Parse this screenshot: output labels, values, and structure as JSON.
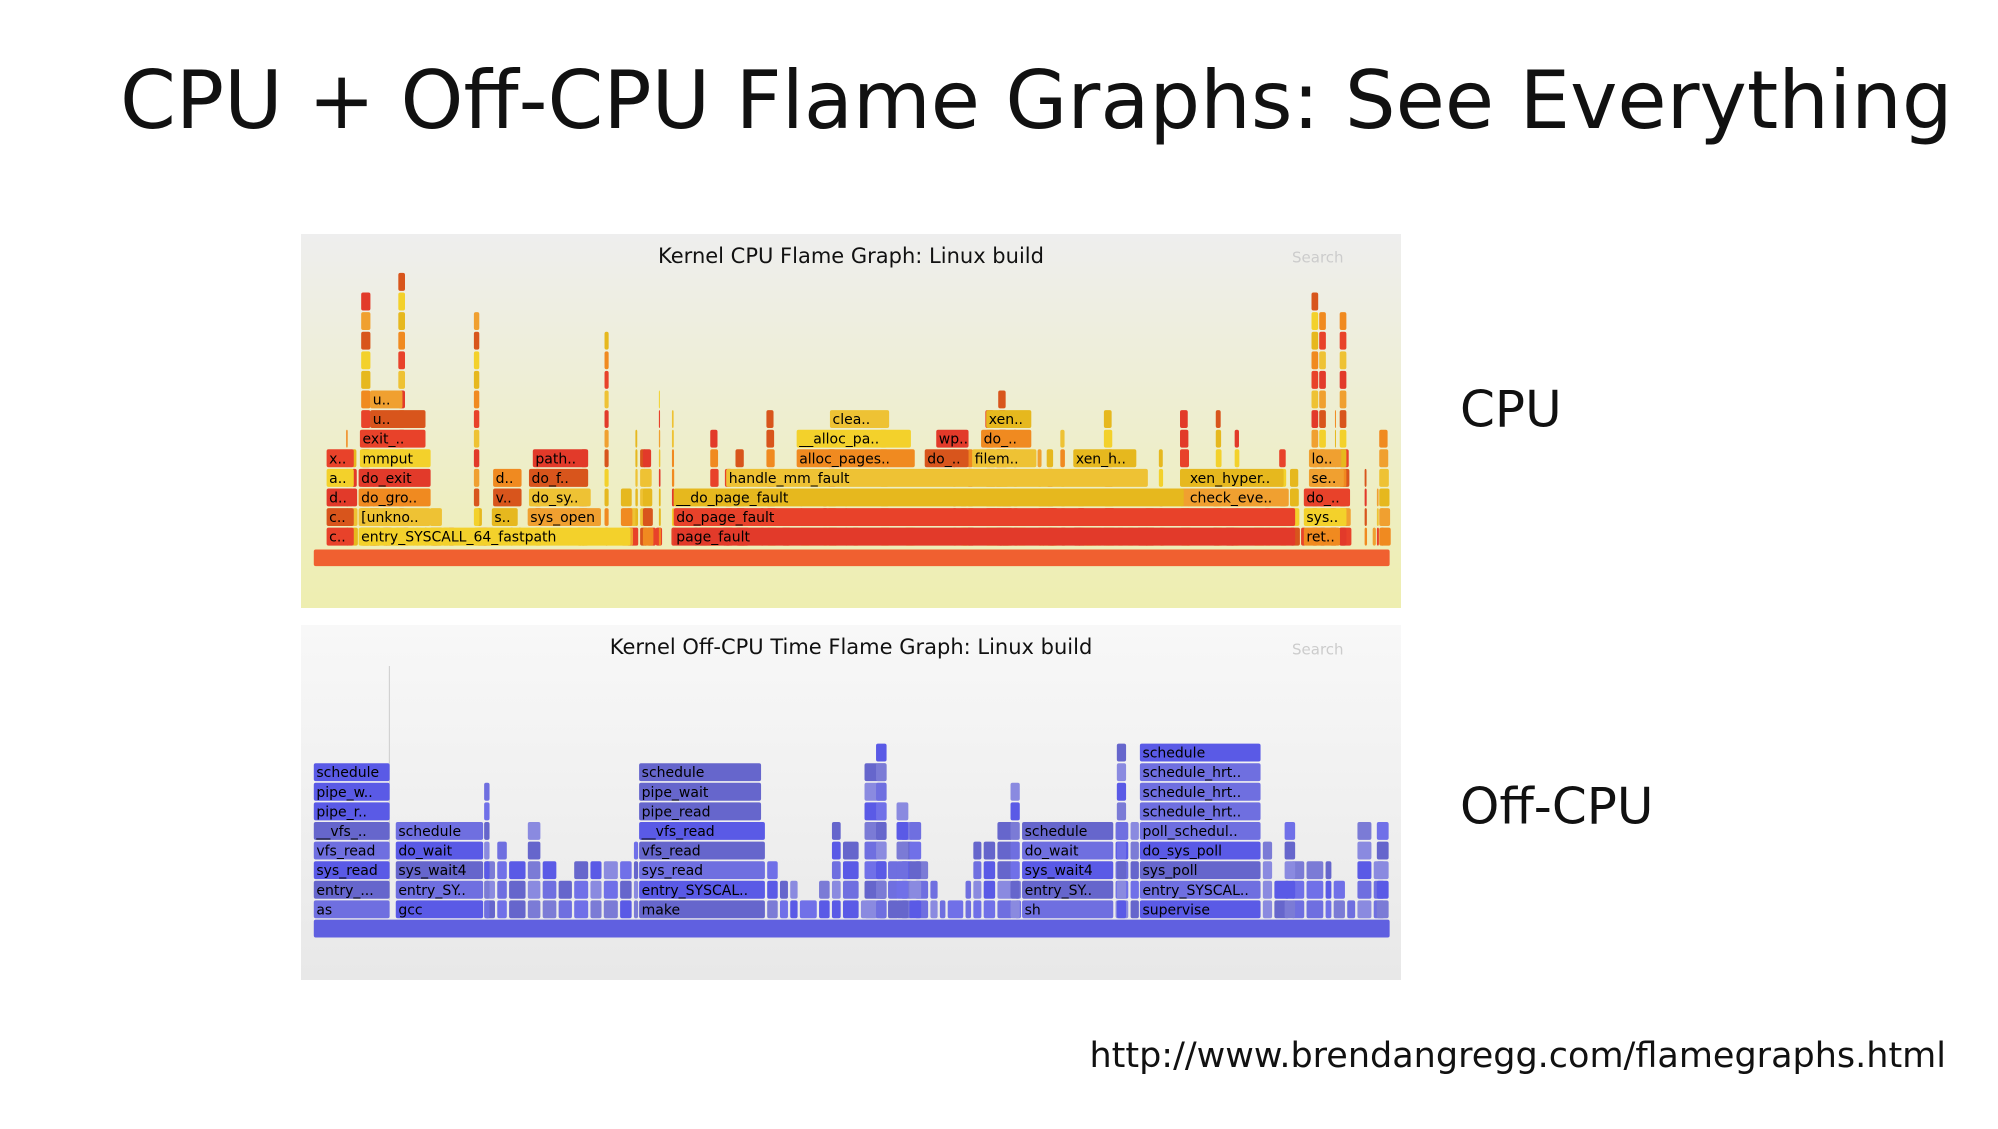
{
  "title": "CPU + Off-CPU Flame Graphs: See Everything",
  "panels": [
    {
      "title": "Kernel CPU Flame Graph: Linux build",
      "search": "Search",
      "frames": [
        "c..",
        "entry_SYSCALL_64_fastpath",
        "page_fault",
        "ret..",
        "c..",
        "[unkno..",
        "s..",
        "sys_open",
        "do_page_fault",
        "sys..",
        "d..",
        "do_gro..",
        "v..",
        "do_sy..",
        "__do_page_fault",
        "check_eve..",
        "do_..",
        "a..",
        "do_exit",
        "d..",
        "do_f..",
        "handle_mm_fault",
        "xen_hyper..",
        "se..",
        "x..",
        "mmput",
        "path..",
        "alloc_pages..",
        "do_..",
        "filem..",
        "xen_h..",
        "lo..",
        "exit_..",
        "__alloc_pa..",
        "wp..",
        "do_..",
        "u..",
        "clea..",
        "xen..",
        "u.."
      ]
    },
    {
      "title": "Kernel Off-CPU Time Flame Graph: Linux build",
      "search": "Search",
      "frames": [
        "as",
        "gcc",
        "make",
        "sh",
        "supervise",
        "entry_...",
        "entry_SY..",
        "entry_SYSCAL..",
        "entry_SY..",
        "entry_SYSCAL..",
        "sys_read",
        "sys_wait4",
        "sys_read",
        "sys_wait4",
        "sys_poll",
        "vfs_read",
        "do_wait",
        "vfs_read",
        "do_wait",
        "do_sys_poll",
        "__vfs_..",
        "schedule",
        "__vfs_read",
        "schedule",
        "poll_schedul..",
        "pipe_r..",
        "pipe_read",
        "schedule_hrt..",
        "pipe_w..",
        "pipe_wait",
        "schedule_hrt..",
        "schedule",
        "schedule",
        "schedule_hrt..",
        "schedule"
      ]
    }
  ],
  "side_labels": [
    "CPU",
    "Off-CPU"
  ],
  "url": "http://www.brendangregg.com/flamegraphs.html"
}
